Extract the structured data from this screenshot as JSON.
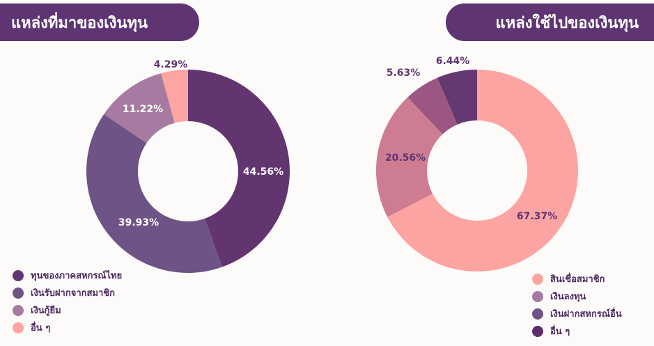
{
  "titles": {
    "left": "แหล่งที่มาของเงินทุน",
    "right": "แหล่งใช้ไปของเงินทุน"
  },
  "chart_data": [
    {
      "type": "pie",
      "donut": true,
      "title": "แหล่งที่มาของเงินทุน",
      "categories": [
        "ทุนของภาคสหกรณ์ไทย",
        "เงินรับฝากจากสมาชิก",
        "เงินกู้ยืม",
        "อื่น ๆ"
      ],
      "values": [
        44.56,
        39.93,
        11.22,
        4.29
      ],
      "labels": [
        "44.56%",
        "39.93%",
        "11.22%",
        "4.29%"
      ],
      "colors": [
        "#633570",
        "#6e5386",
        "#a67aa1",
        "#fca5a2"
      ],
      "label_colors": [
        "#ffffff",
        "#ffffff",
        "#ffffff",
        "#5e3572"
      ],
      "legend_position": "bottom-left"
    },
    {
      "type": "pie",
      "donut": true,
      "title": "แหล่งใช้ไปของเงินทุน",
      "categories": [
        "สินเชื่อสมาชิก",
        "เงินลงทุน",
        "เงินฝากสหกรณ์อื่น",
        "อื่น ๆ"
      ],
      "values": [
        67.37,
        20.56,
        5.63,
        6.44
      ],
      "labels": [
        "67.37%",
        "20.56%",
        "5.63%",
        "6.44%"
      ],
      "colors": [
        "#fba4a2",
        "#cd7c92",
        "#9b5683",
        "#643870"
      ],
      "legend_colors": [
        "#fba4a2",
        "#a67aa1",
        "#6e5386",
        "#5e2d6b"
      ],
      "label_colors": [
        "#5e3572",
        "#5e3572",
        "#5e3572",
        "#5e3572"
      ],
      "legend_position": "bottom-right"
    }
  ]
}
